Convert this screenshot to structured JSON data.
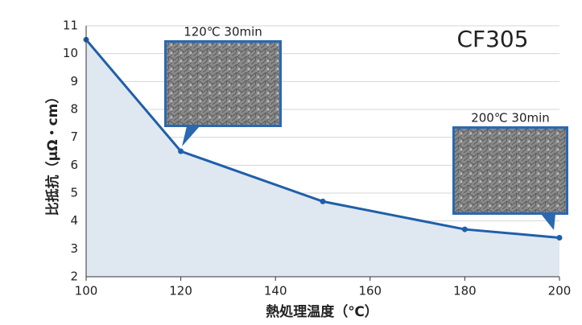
{
  "chart_data": {
    "type": "line",
    "x_label": "熱処理温度（℃）",
    "y_label": "比抵抗（μΩ・cm）",
    "x": [
      100,
      120,
      150,
      180,
      200
    ],
    "series": [
      {
        "name": "CF305",
        "color": "#1f5fa8",
        "values": [
          10.5,
          6.5,
          4.7,
          3.7,
          3.4
        ]
      }
    ],
    "fill": "#dfe7f1",
    "xlim": [
      100,
      200
    ],
    "xticks": [
      100,
      120,
      140,
      160,
      180,
      200
    ],
    "ylim": [
      2,
      11
    ],
    "yticks": [
      2,
      3,
      4,
      5,
      6,
      7,
      8,
      9,
      10,
      11
    ],
    "grid": true,
    "annotations": [
      "120℃ 30min",
      "200℃ 30min"
    ]
  }
}
